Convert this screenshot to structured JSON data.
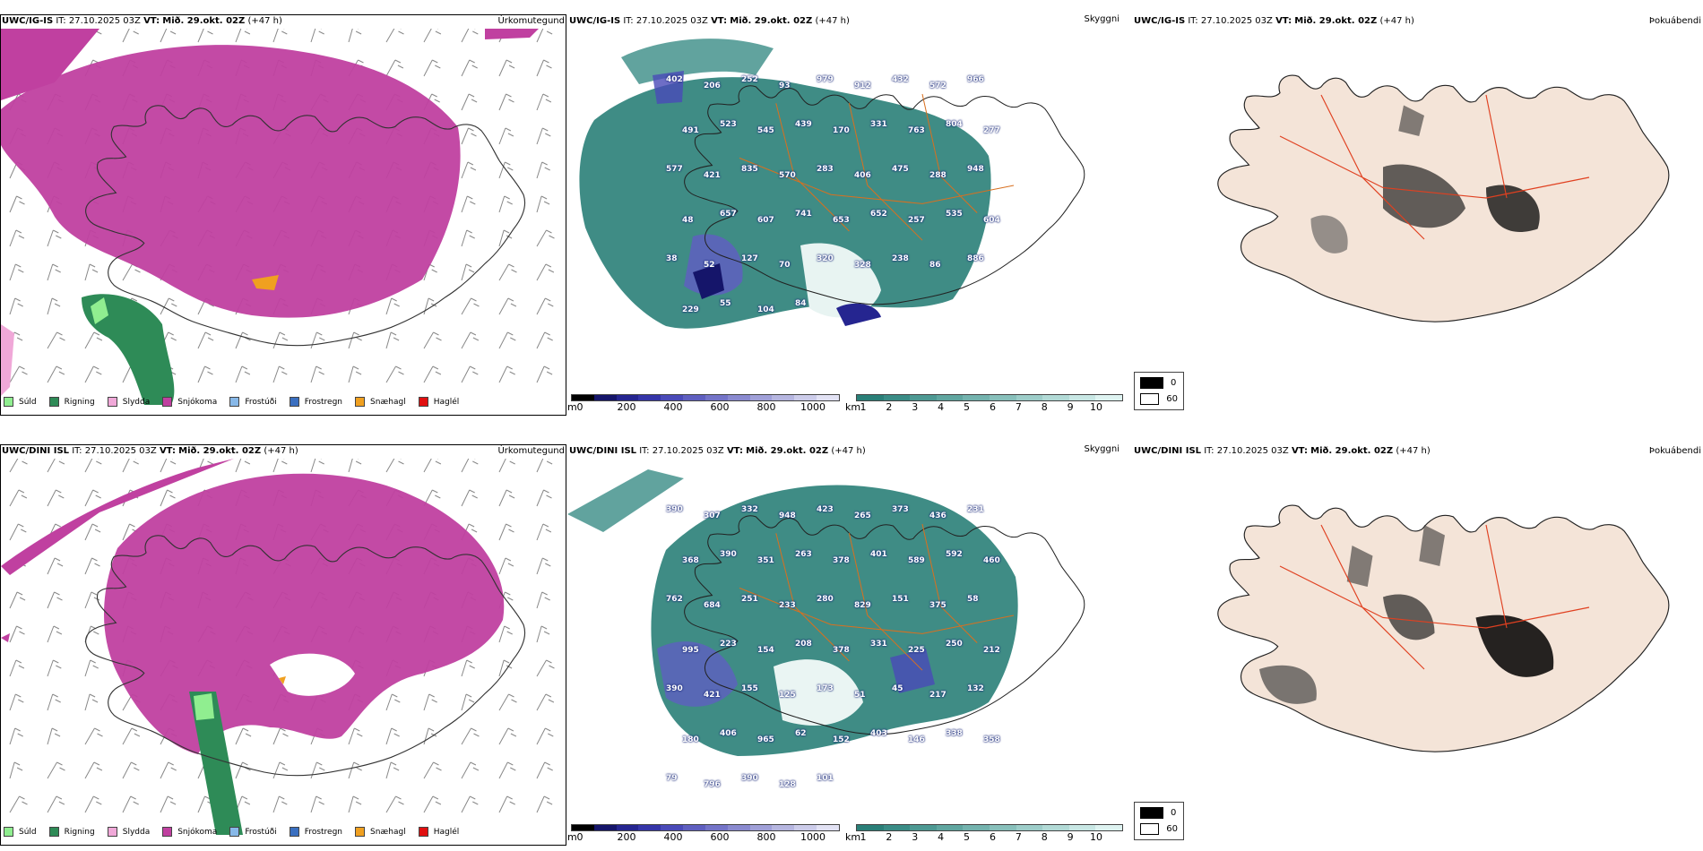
{
  "rows": [
    {
      "model": "UWC/IG-IS",
      "it_label": "IT:",
      "it_value": "27.10.2025 03Z",
      "vt_label": "VT:",
      "vt_value": "Mið. 29.okt. 02Z",
      "lead": "(+47 h)",
      "panel_names": [
        "Úrkomutegund",
        "Skyggni",
        "Þokuábendi"
      ],
      "visibility_labels": [
        "402",
        "206",
        "252",
        "93",
        "979",
        "912",
        "432",
        "572",
        "966",
        "491",
        "523",
        "545",
        "439",
        "170",
        "331",
        "763",
        "804",
        "277",
        "577",
        "421",
        "835",
        "570",
        "283",
        "406",
        "475",
        "288",
        "948",
        "48",
        "657",
        "607",
        "741",
        "653",
        "652",
        "257",
        "535",
        "604",
        "38",
        "52",
        "127",
        "70",
        "320",
        "328",
        "238",
        "86",
        "886",
        "229",
        "55",
        "104",
        "84"
      ]
    },
    {
      "model": "UWC/DINI ISL",
      "it_label": "IT:",
      "it_value": "27.10.2025 03Z",
      "vt_label": "VT:",
      "vt_value": "Mið. 29.okt. 02Z",
      "lead": "(+47 h)",
      "panel_names": [
        "Úrkomutegund",
        "Skyggni",
        "Þokuábendi"
      ],
      "visibility_labels": [
        "390",
        "307",
        "332",
        "948",
        "423",
        "265",
        "373",
        "436",
        "231",
        "368",
        "390",
        "351",
        "263",
        "378",
        "401",
        "589",
        "592",
        "460",
        "762",
        "684",
        "251",
        "233",
        "280",
        "829",
        "151",
        "375",
        "58",
        "995",
        "223",
        "154",
        "208",
        "378",
        "331",
        "225",
        "250",
        "212",
        "390",
        "421",
        "155",
        "125",
        "173",
        "51",
        "45",
        "217",
        "132",
        "180",
        "406",
        "965",
        "62",
        "152",
        "403",
        "146",
        "338",
        "358",
        "79",
        "796",
        "390",
        "128",
        "101"
      ]
    }
  ],
  "precip_legend": [
    {
      "label": "Súld",
      "color": "#90ee90"
    },
    {
      "label": "Rigning",
      "color": "#2e8b57"
    },
    {
      "label": "Slydda",
      "color": "#f0a8d8"
    },
    {
      "label": "Snjókoma",
      "color": "#c040a0"
    },
    {
      "label": "Frostúði",
      "color": "#87b8e8"
    },
    {
      "label": "Frostregn",
      "color": "#3a6fc0"
    },
    {
      "label": "Snæhagl",
      "color": "#f0a020"
    },
    {
      "label": "Haglél",
      "color": "#e01010"
    }
  ],
  "cloud_base_bar": {
    "unit": "m",
    "ticks": [
      "0",
      "200",
      "400",
      "600",
      "800",
      "1000"
    ],
    "colors": [
      "#000000",
      "#15156a",
      "#252590",
      "#3535a8",
      "#4a4ab8",
      "#5f5fc0",
      "#7474c8",
      "#8a8ad0",
      "#a0a0d8",
      "#b6b6e0",
      "#ccccea",
      "#e2e2f4"
    ]
  },
  "visibility_bar": {
    "unit": "km",
    "ticks": [
      "1",
      "2",
      "3",
      "4",
      "5",
      "6",
      "7",
      "8",
      "9",
      "10"
    ],
    "colors": [
      "#2a7f78",
      "#3a8c86",
      "#4d9993",
      "#60a6a0",
      "#74b3ae",
      "#88c0bb",
      "#9dcdc9",
      "#b2dad6",
      "#c8e7e4",
      "#def3f1"
    ]
  },
  "fog_legend": {
    "items": [
      {
        "value": "0",
        "color": "#000000"
      },
      {
        "value": "60",
        "color": "#ffffff"
      }
    ]
  }
}
